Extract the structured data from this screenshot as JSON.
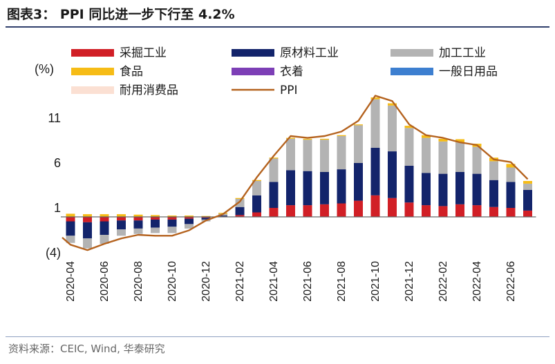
{
  "header": {
    "title": "图表3： PPI 同比进一步下行至 4.2%"
  },
  "footer": {
    "source": "资料来源：CEIC, Wind, 华泰研究"
  },
  "colors": {
    "mining": "#d11f26",
    "raw_materials": "#13246b",
    "processing": "#b3b3b3",
    "food": "#f6bc16",
    "clothing": "#7d3fb6",
    "daily_goods": "#3d7fd0",
    "durable_consumer": "#fbe0d3",
    "ppi": "#b4621e",
    "axis": "#666666",
    "title_rule": "#2f3f6b"
  },
  "chart_data": {
    "type": "bar",
    "stacked": true,
    "ylabel": "(%)",
    "ylim": [
      -4,
      15
    ],
    "yticks": [
      -4,
      1,
      6,
      11
    ],
    "ytick_labels": [
      "(4)",
      "1",
      "6",
      "11"
    ],
    "grid": false,
    "legend_position": "top",
    "categories": [
      "2020-04",
      "2020-05",
      "2020-06",
      "2020-07",
      "2020-08",
      "2020-09",
      "2020-10",
      "2020-11",
      "2020-12",
      "2021-01",
      "2021-02",
      "2021-03",
      "2021-04",
      "2021-05",
      "2021-06",
      "2021-07",
      "2021-08",
      "2021-09",
      "2021-10",
      "2021-11",
      "2021-12",
      "2022-01",
      "2022-02",
      "2022-03",
      "2022-04",
      "2022-05",
      "2022-06",
      "2022-07"
    ],
    "xtick_labels": [
      "2020-04",
      "2020-06",
      "2020-08",
      "2020-10",
      "2020-12",
      "2021-02",
      "2021-04",
      "2021-06",
      "2021-08",
      "2021-10",
      "2021-12",
      "2022-02",
      "2022-04",
      "2022-06"
    ],
    "series": [
      {
        "name": "采掘工业",
        "key": "mining",
        "kind": "bar",
        "values": [
          -0.5,
          -0.6,
          -0.5,
          -0.4,
          -0.4,
          -0.3,
          -0.3,
          -0.2,
          -0.1,
          0.05,
          0.2,
          0.5,
          1.0,
          1.3,
          1.3,
          1.4,
          1.5,
          1.8,
          2.4,
          2.1,
          1.6,
          1.3,
          1.2,
          1.4,
          1.3,
          1.1,
          1.0,
          0.7
        ]
      },
      {
        "name": "原材料工业",
        "key": "raw_materials",
        "kind": "bar",
        "values": [
          -1.6,
          -1.8,
          -1.5,
          -1.0,
          -0.9,
          -0.9,
          -0.8,
          -0.6,
          -0.2,
          0.1,
          0.9,
          1.9,
          2.9,
          3.9,
          3.8,
          3.6,
          3.8,
          4.2,
          5.3,
          5.2,
          4.1,
          3.6,
          3.6,
          3.6,
          3.5,
          3.0,
          2.9,
          2.3
        ]
      },
      {
        "name": "加工工业",
        "key": "processing",
        "kind": "bar",
        "values": [
          -0.8,
          -1.1,
          -1.0,
          -0.7,
          -0.6,
          -0.6,
          -0.7,
          -0.5,
          -0.2,
          0.2,
          0.9,
          1.6,
          2.6,
          3.5,
          3.5,
          3.6,
          3.7,
          4.2,
          5.4,
          5.1,
          4.2,
          3.9,
          3.6,
          3.3,
          3.0,
          2.1,
          1.6,
          0.7
        ]
      },
      {
        "name": "食品",
        "key": "food",
        "kind": "bar",
        "values": [
          0.35,
          0.3,
          0.3,
          0.3,
          0.25,
          0.2,
          0.15,
          0.15,
          0.1,
          0.1,
          0.1,
          0.1,
          0.1,
          0.1,
          0.1,
          0.1,
          0.1,
          0.1,
          0.2,
          0.25,
          0.25,
          0.3,
          0.3,
          0.35,
          0.35,
          0.4,
          0.4,
          0.3
        ]
      },
      {
        "name": "衣着",
        "key": "clothing",
        "kind": "bar",
        "values": [
          0,
          0,
          0,
          0,
          0,
          0,
          0,
          0,
          0,
          0,
          0,
          0,
          0,
          0,
          0,
          0,
          0,
          0,
          0,
          0,
          0,
          0,
          0,
          0,
          0,
          0,
          0,
          0
        ]
      },
      {
        "name": "一般日用品",
        "key": "daily_goods",
        "kind": "bar",
        "values": [
          0,
          0,
          0,
          0,
          0,
          0,
          0,
          0,
          0,
          0,
          0,
          0,
          0,
          0,
          0,
          0,
          0,
          0,
          0,
          0,
          0,
          0,
          0,
          0,
          0,
          0,
          0,
          0
        ]
      },
      {
        "name": "耐用消费品",
        "key": "durable_consumer",
        "kind": "bar",
        "values": [
          0,
          0,
          0,
          0,
          0,
          0,
          0,
          0,
          0,
          0,
          0,
          0,
          0,
          0,
          0,
          0,
          0,
          0,
          0,
          0,
          0,
          0,
          0,
          0,
          0,
          0,
          0,
          0
        ]
      },
      {
        "name": "PPI",
        "key": "ppi",
        "kind": "line",
        "values": [
          -3.1,
          -3.7,
          -3.0,
          -2.4,
          -2.0,
          -2.1,
          -2.1,
          -1.5,
          -0.4,
          0.3,
          1.7,
          4.4,
          6.8,
          9.0,
          8.8,
          9.0,
          9.5,
          10.7,
          13.5,
          12.9,
          10.3,
          9.1,
          8.8,
          8.3,
          8.0,
          6.4,
          6.1,
          4.2
        ]
      }
    ],
    "legend_rows": [
      [
        "mining",
        "raw_materials",
        "processing"
      ],
      [
        "food",
        "clothing",
        "daily_goods"
      ],
      [
        "durable_consumer",
        "ppi"
      ]
    ]
  }
}
